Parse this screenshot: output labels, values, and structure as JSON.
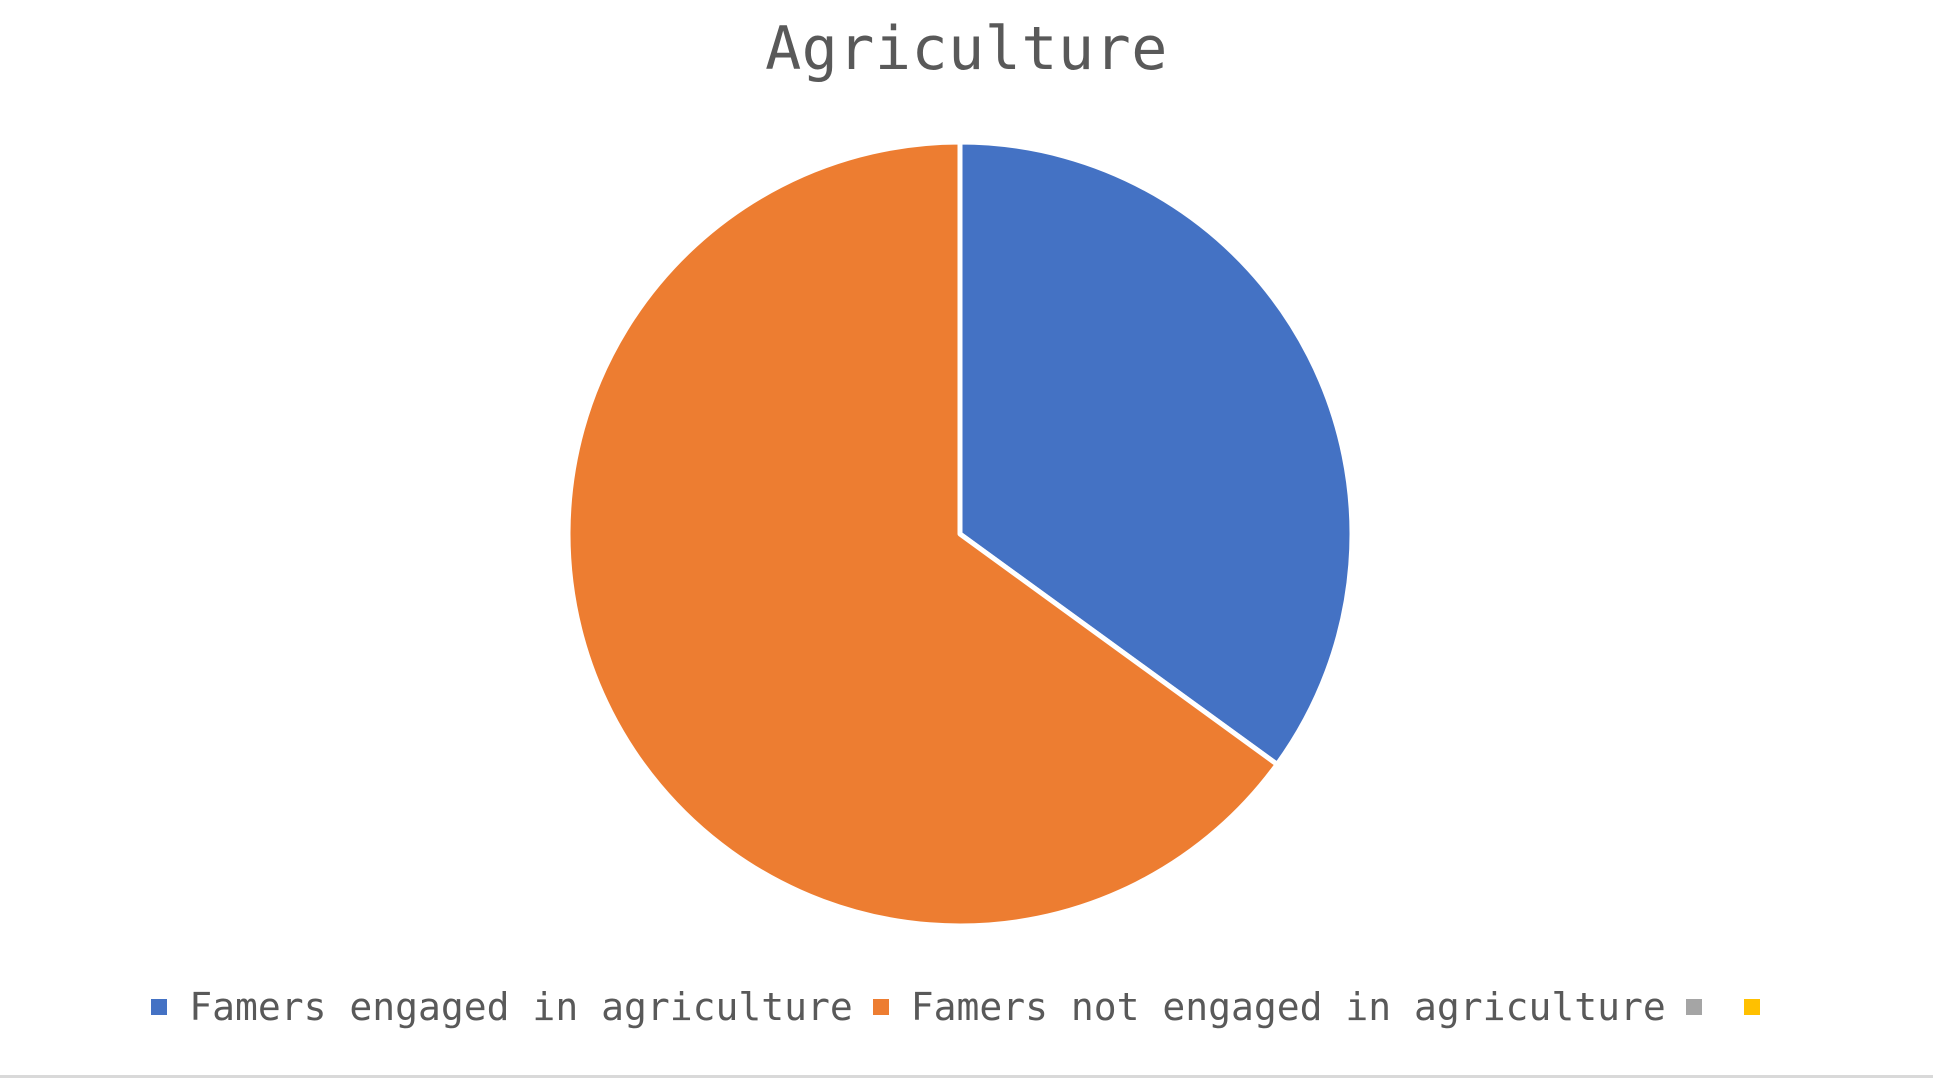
{
  "chart_data": {
    "type": "pie",
    "title": "Agriculture",
    "categories": [
      "Famers engaged in agriculture",
      "Famers not engaged in agriculture",
      "",
      ""
    ],
    "values": [
      35,
      65,
      0,
      0
    ],
    "colors": [
      "#4472C4",
      "#ED7D31",
      "#A5A5A5",
      "#FFC000"
    ],
    "legend_position": "bottom",
    "start_angle": "12 o'clock, clockwise"
  }
}
